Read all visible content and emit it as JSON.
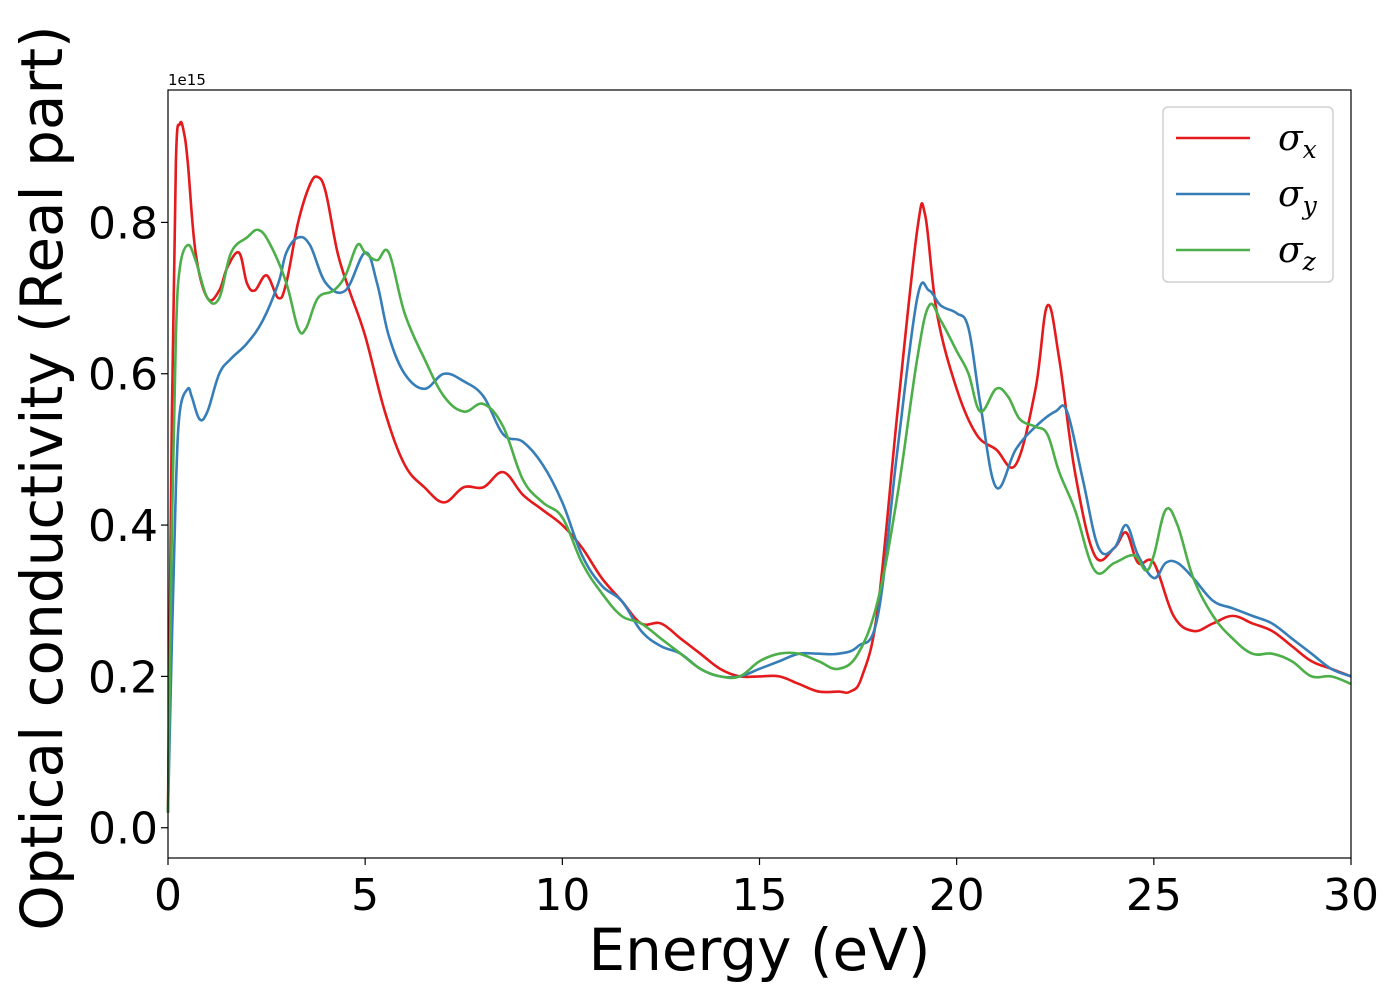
{
  "chart_data": {
    "type": "line",
    "xlabel": "Energy (eV)",
    "ylabel": "Optical conductivity (Real part)",
    "y_offset_label": "1e15",
    "xlim": [
      0,
      30
    ],
    "ylim": [
      -0.04,
      0.975
    ],
    "x_ticks": [
      0,
      5,
      10,
      15,
      20,
      25,
      30
    ],
    "x_tick_labels": [
      "0",
      "5",
      "10",
      "15",
      "20",
      "25",
      "30"
    ],
    "y_ticks": [
      0.0,
      0.2,
      0.4,
      0.6,
      0.8
    ],
    "y_tick_labels": [
      "0.0",
      "0.2",
      "0.4",
      "0.6",
      "0.8"
    ],
    "grid": false,
    "legend_position": "top-right",
    "series": [
      {
        "name": "σx",
        "symbol": "σ",
        "subscript": "x",
        "color": "#e41a1c",
        "x": [
          0,
          0.1,
          0.2,
          0.3,
          0.4,
          0.5,
          0.7,
          1.0,
          1.3,
          1.5,
          1.8,
          2.0,
          2.2,
          2.5,
          2.8,
          3.0,
          3.3,
          3.6,
          3.8,
          4.0,
          4.3,
          4.6,
          5.0,
          5.5,
          6.0,
          6.5,
          7.0,
          7.5,
          8.0,
          8.5,
          9.0,
          9.5,
          10.0,
          10.5,
          11.0,
          11.5,
          12.0,
          12.5,
          13.0,
          13.5,
          14.0,
          14.5,
          15.0,
          15.5,
          16.0,
          16.5,
          17.0,
          17.3,
          17.6,
          18.0,
          18.5,
          19.0,
          19.2,
          19.5,
          20.0,
          20.5,
          21.0,
          21.5,
          22.0,
          22.3,
          22.6,
          23.0,
          23.5,
          24.0,
          24.3,
          24.6,
          25.0,
          25.5,
          26.0,
          26.5,
          27.0,
          27.5,
          28.0,
          28.5,
          29.0,
          29.5,
          30.0
        ],
        "values": [
          0.02,
          0.55,
          0.88,
          0.93,
          0.92,
          0.88,
          0.76,
          0.7,
          0.71,
          0.74,
          0.76,
          0.72,
          0.71,
          0.73,
          0.7,
          0.72,
          0.8,
          0.85,
          0.86,
          0.84,
          0.76,
          0.71,
          0.65,
          0.55,
          0.48,
          0.45,
          0.43,
          0.45,
          0.45,
          0.47,
          0.44,
          0.42,
          0.4,
          0.37,
          0.33,
          0.3,
          0.27,
          0.27,
          0.25,
          0.23,
          0.21,
          0.2,
          0.2,
          0.2,
          0.19,
          0.18,
          0.18,
          0.18,
          0.2,
          0.29,
          0.55,
          0.79,
          0.81,
          0.68,
          0.58,
          0.52,
          0.5,
          0.48,
          0.58,
          0.69,
          0.62,
          0.47,
          0.36,
          0.37,
          0.39,
          0.35,
          0.35,
          0.28,
          0.26,
          0.27,
          0.28,
          0.27,
          0.26,
          0.24,
          0.22,
          0.21,
          0.2
        ]
      },
      {
        "name": "σy",
        "symbol": "σ",
        "subscript": "y",
        "color": "#377eb8",
        "x": [
          0,
          0.1,
          0.2,
          0.3,
          0.5,
          0.6,
          0.8,
          1.0,
          1.3,
          1.6,
          2.0,
          2.4,
          2.8,
          3.0,
          3.3,
          3.6,
          4.0,
          4.5,
          5.0,
          5.3,
          5.6,
          6.0,
          6.5,
          7.0,
          7.5,
          8.0,
          8.5,
          9.0,
          9.5,
          10.0,
          10.5,
          11.0,
          11.5,
          12.0,
          12.5,
          13.0,
          13.5,
          14.0,
          14.5,
          15.0,
          15.5,
          16.0,
          16.5,
          17.0,
          17.5,
          18.0,
          18.5,
          19.0,
          19.3,
          19.6,
          20.0,
          20.3,
          20.6,
          21.0,
          21.5,
          22.0,
          22.5,
          22.8,
          23.2,
          23.6,
          24.0,
          24.3,
          24.6,
          25.0,
          25.3,
          25.6,
          26.0,
          26.5,
          27.0,
          27.5,
          28.0,
          28.5,
          29.0,
          29.5,
          30.0
        ],
        "values": [
          0.02,
          0.25,
          0.45,
          0.55,
          0.58,
          0.57,
          0.54,
          0.55,
          0.6,
          0.62,
          0.64,
          0.67,
          0.72,
          0.76,
          0.78,
          0.77,
          0.72,
          0.71,
          0.76,
          0.72,
          0.65,
          0.6,
          0.58,
          0.6,
          0.59,
          0.57,
          0.52,
          0.51,
          0.48,
          0.43,
          0.36,
          0.32,
          0.3,
          0.26,
          0.24,
          0.23,
          0.21,
          0.2,
          0.2,
          0.21,
          0.22,
          0.23,
          0.23,
          0.23,
          0.24,
          0.28,
          0.5,
          0.7,
          0.71,
          0.69,
          0.68,
          0.66,
          0.56,
          0.45,
          0.5,
          0.53,
          0.55,
          0.55,
          0.46,
          0.37,
          0.37,
          0.4,
          0.36,
          0.33,
          0.35,
          0.35,
          0.33,
          0.3,
          0.29,
          0.28,
          0.27,
          0.25,
          0.23,
          0.21,
          0.2
        ]
      },
      {
        "name": "σz",
        "symbol": "σ",
        "subscript": "z",
        "color": "#4daf4a",
        "x": [
          0,
          0.1,
          0.2,
          0.3,
          0.5,
          0.7,
          1.0,
          1.3,
          1.6,
          2.0,
          2.3,
          2.6,
          3.0,
          3.3,
          3.5,
          3.8,
          4.2,
          4.5,
          4.8,
          5.0,
          5.3,
          5.6,
          6.0,
          6.5,
          7.0,
          7.5,
          8.0,
          8.5,
          9.0,
          9.5,
          10.0,
          10.5,
          11.0,
          11.5,
          12.0,
          12.5,
          13.0,
          13.5,
          14.0,
          14.5,
          15.0,
          15.5,
          16.0,
          16.5,
          17.0,
          17.5,
          18.0,
          18.5,
          19.0,
          19.3,
          19.6,
          20.0,
          20.3,
          20.6,
          21.0,
          21.3,
          21.6,
          22.0,
          22.3,
          22.6,
          23.0,
          23.5,
          24.0,
          24.5,
          24.8,
          25.0,
          25.3,
          25.6,
          26.0,
          26.5,
          27.0,
          27.5,
          28.0,
          28.5,
          29.0,
          29.5,
          30.0
        ],
        "values": [
          0.02,
          0.4,
          0.65,
          0.74,
          0.77,
          0.75,
          0.7,
          0.7,
          0.76,
          0.78,
          0.79,
          0.77,
          0.72,
          0.66,
          0.66,
          0.7,
          0.71,
          0.73,
          0.77,
          0.76,
          0.75,
          0.76,
          0.68,
          0.62,
          0.57,
          0.55,
          0.56,
          0.53,
          0.46,
          0.43,
          0.41,
          0.35,
          0.31,
          0.28,
          0.27,
          0.25,
          0.23,
          0.21,
          0.2,
          0.2,
          0.22,
          0.23,
          0.23,
          0.22,
          0.21,
          0.23,
          0.3,
          0.44,
          0.62,
          0.69,
          0.67,
          0.63,
          0.6,
          0.55,
          0.58,
          0.57,
          0.54,
          0.53,
          0.52,
          0.47,
          0.42,
          0.34,
          0.35,
          0.36,
          0.34,
          0.36,
          0.42,
          0.4,
          0.33,
          0.28,
          0.25,
          0.23,
          0.23,
          0.22,
          0.2,
          0.2,
          0.19
        ]
      }
    ]
  }
}
